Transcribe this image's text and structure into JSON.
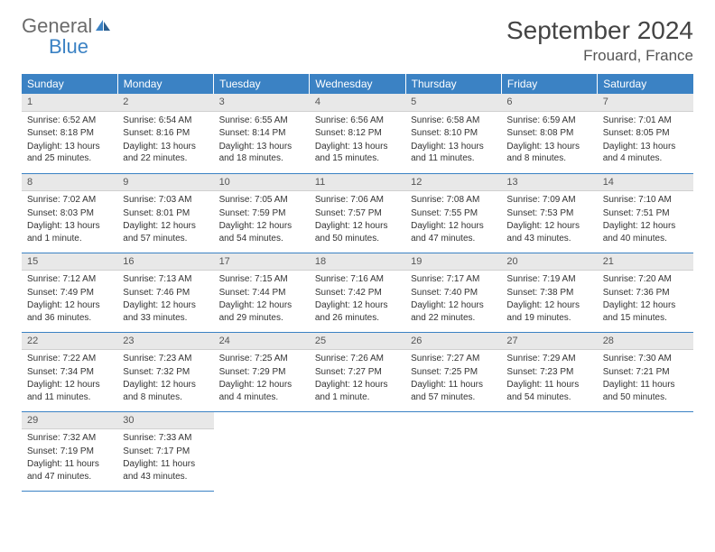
{
  "logo": {
    "general": "General",
    "blue": "Blue"
  },
  "title": "September 2024",
  "location": "Frouard, France",
  "weekdays": [
    "Sunday",
    "Monday",
    "Tuesday",
    "Wednesday",
    "Thursday",
    "Friday",
    "Saturday"
  ],
  "colors": {
    "header_bg": "#3b82c4",
    "header_text": "#ffffff",
    "daynum_bg": "#e8e8e8",
    "border": "#3b82c4",
    "logo_general": "#6b6b6b",
    "logo_blue": "#3b82c4"
  },
  "weeks": [
    [
      {
        "n": "1",
        "sr": "Sunrise: 6:52 AM",
        "ss": "Sunset: 8:18 PM",
        "dl": "Daylight: 13 hours and 25 minutes."
      },
      {
        "n": "2",
        "sr": "Sunrise: 6:54 AM",
        "ss": "Sunset: 8:16 PM",
        "dl": "Daylight: 13 hours and 22 minutes."
      },
      {
        "n": "3",
        "sr": "Sunrise: 6:55 AM",
        "ss": "Sunset: 8:14 PM",
        "dl": "Daylight: 13 hours and 18 minutes."
      },
      {
        "n": "4",
        "sr": "Sunrise: 6:56 AM",
        "ss": "Sunset: 8:12 PM",
        "dl": "Daylight: 13 hours and 15 minutes."
      },
      {
        "n": "5",
        "sr": "Sunrise: 6:58 AM",
        "ss": "Sunset: 8:10 PM",
        "dl": "Daylight: 13 hours and 11 minutes."
      },
      {
        "n": "6",
        "sr": "Sunrise: 6:59 AM",
        "ss": "Sunset: 8:08 PM",
        "dl": "Daylight: 13 hours and 8 minutes."
      },
      {
        "n": "7",
        "sr": "Sunrise: 7:01 AM",
        "ss": "Sunset: 8:05 PM",
        "dl": "Daylight: 13 hours and 4 minutes."
      }
    ],
    [
      {
        "n": "8",
        "sr": "Sunrise: 7:02 AM",
        "ss": "Sunset: 8:03 PM",
        "dl": "Daylight: 13 hours and 1 minute."
      },
      {
        "n": "9",
        "sr": "Sunrise: 7:03 AM",
        "ss": "Sunset: 8:01 PM",
        "dl": "Daylight: 12 hours and 57 minutes."
      },
      {
        "n": "10",
        "sr": "Sunrise: 7:05 AM",
        "ss": "Sunset: 7:59 PM",
        "dl": "Daylight: 12 hours and 54 minutes."
      },
      {
        "n": "11",
        "sr": "Sunrise: 7:06 AM",
        "ss": "Sunset: 7:57 PM",
        "dl": "Daylight: 12 hours and 50 minutes."
      },
      {
        "n": "12",
        "sr": "Sunrise: 7:08 AM",
        "ss": "Sunset: 7:55 PM",
        "dl": "Daylight: 12 hours and 47 minutes."
      },
      {
        "n": "13",
        "sr": "Sunrise: 7:09 AM",
        "ss": "Sunset: 7:53 PM",
        "dl": "Daylight: 12 hours and 43 minutes."
      },
      {
        "n": "14",
        "sr": "Sunrise: 7:10 AM",
        "ss": "Sunset: 7:51 PM",
        "dl": "Daylight: 12 hours and 40 minutes."
      }
    ],
    [
      {
        "n": "15",
        "sr": "Sunrise: 7:12 AM",
        "ss": "Sunset: 7:49 PM",
        "dl": "Daylight: 12 hours and 36 minutes."
      },
      {
        "n": "16",
        "sr": "Sunrise: 7:13 AM",
        "ss": "Sunset: 7:46 PM",
        "dl": "Daylight: 12 hours and 33 minutes."
      },
      {
        "n": "17",
        "sr": "Sunrise: 7:15 AM",
        "ss": "Sunset: 7:44 PM",
        "dl": "Daylight: 12 hours and 29 minutes."
      },
      {
        "n": "18",
        "sr": "Sunrise: 7:16 AM",
        "ss": "Sunset: 7:42 PM",
        "dl": "Daylight: 12 hours and 26 minutes."
      },
      {
        "n": "19",
        "sr": "Sunrise: 7:17 AM",
        "ss": "Sunset: 7:40 PM",
        "dl": "Daylight: 12 hours and 22 minutes."
      },
      {
        "n": "20",
        "sr": "Sunrise: 7:19 AM",
        "ss": "Sunset: 7:38 PM",
        "dl": "Daylight: 12 hours and 19 minutes."
      },
      {
        "n": "21",
        "sr": "Sunrise: 7:20 AM",
        "ss": "Sunset: 7:36 PM",
        "dl": "Daylight: 12 hours and 15 minutes."
      }
    ],
    [
      {
        "n": "22",
        "sr": "Sunrise: 7:22 AM",
        "ss": "Sunset: 7:34 PM",
        "dl": "Daylight: 12 hours and 11 minutes."
      },
      {
        "n": "23",
        "sr": "Sunrise: 7:23 AM",
        "ss": "Sunset: 7:32 PM",
        "dl": "Daylight: 12 hours and 8 minutes."
      },
      {
        "n": "24",
        "sr": "Sunrise: 7:25 AM",
        "ss": "Sunset: 7:29 PM",
        "dl": "Daylight: 12 hours and 4 minutes."
      },
      {
        "n": "25",
        "sr": "Sunrise: 7:26 AM",
        "ss": "Sunset: 7:27 PM",
        "dl": "Daylight: 12 hours and 1 minute."
      },
      {
        "n": "26",
        "sr": "Sunrise: 7:27 AM",
        "ss": "Sunset: 7:25 PM",
        "dl": "Daylight: 11 hours and 57 minutes."
      },
      {
        "n": "27",
        "sr": "Sunrise: 7:29 AM",
        "ss": "Sunset: 7:23 PM",
        "dl": "Daylight: 11 hours and 54 minutes."
      },
      {
        "n": "28",
        "sr": "Sunrise: 7:30 AM",
        "ss": "Sunset: 7:21 PM",
        "dl": "Daylight: 11 hours and 50 minutes."
      }
    ],
    [
      {
        "n": "29",
        "sr": "Sunrise: 7:32 AM",
        "ss": "Sunset: 7:19 PM",
        "dl": "Daylight: 11 hours and 47 minutes."
      },
      {
        "n": "30",
        "sr": "Sunrise: 7:33 AM",
        "ss": "Sunset: 7:17 PM",
        "dl": "Daylight: 11 hours and 43 minutes."
      },
      null,
      null,
      null,
      null,
      null
    ]
  ]
}
